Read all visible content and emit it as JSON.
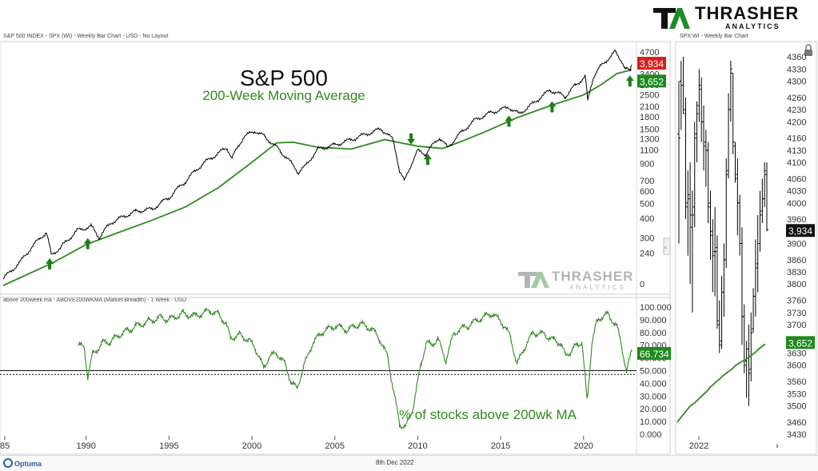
{
  "logo": {
    "main": "THRASHER",
    "sub": "ANALYTICS"
  },
  "watermark": {
    "main": "THRASHER",
    "sub": "ANALYTICS"
  },
  "left_panel": {
    "header": "S&P 500 INDEX - SPX (WI) - Weekly Bar Chart - USD - No Layout"
  },
  "breadth_panel": {
    "header": "above 200week ma - ABOVE200WKMA (Market Breadth) - 1 Week - USD"
  },
  "right_panel": {
    "header": "SPX:WI - Weekly Bar Chart"
  },
  "footer": {
    "date": "8th Dec 2022",
    "brand": "Optuma"
  },
  "colors": {
    "price": "#000000",
    "ma": "#2e8b1f",
    "breadth": "#2e8b1f",
    "arrow": "#1e7d14",
    "price_tag": "#d82020",
    "ma_tag": "#1e8a1e"
  },
  "chart_data": [
    {
      "type": "line",
      "title": "S&P 500",
      "subtitle": "200-Week Moving Average",
      "y_scale": "log",
      "ylim": [
        0,
        4700
      ],
      "y_ticks": [
        "4700",
        "3900",
        "3400",
        "2900",
        "2500",
        "2100",
        "1800",
        "1500",
        "1300",
        "1100",
        "900",
        "700",
        "600",
        "500",
        "400",
        "300",
        "240",
        "0"
      ],
      "x_ticks": [
        "85",
        "1990",
        "1995",
        "2000",
        "2005",
        "2010",
        "2015",
        "2020"
      ],
      "series": [
        {
          "x": [
            1985,
            1986,
            1987.6,
            1987.9,
            1988.5,
            1989.5,
            1990.3,
            1990.8,
            1991.5,
            1993,
            1994,
            1995,
            1996,
            1997,
            1998.5,
            1998.8,
            1999.5,
            2000.2,
            2000.8,
            2001.7,
            2002.8,
            2003.2,
            2004,
            2005,
            2006,
            2007.8,
            2008.5,
            2008.9,
            2009.2,
            2010,
            2010.5,
            2011.3,
            2011.8,
            2012.5,
            2013.5,
            2014.5,
            2015.5,
            2016.1,
            2016.8,
            2018,
            2018.9,
            2019.5,
            2020.1,
            2020.25,
            2020.6,
            2021,
            2021.9,
            2022.3,
            2022.5,
            2022.8,
            2022.9
          ],
          "values": [
            165,
            210,
            330,
            235,
            265,
            340,
            360,
            305,
            380,
            450,
            465,
            550,
            700,
            900,
            1150,
            980,
            1350,
            1480,
            1350,
            1100,
            800,
            870,
            1130,
            1200,
            1300,
            1520,
            1300,
            820,
            700,
            1100,
            1050,
            1340,
            1150,
            1400,
            1750,
            1950,
            2100,
            1900,
            2150,
            2700,
            2450,
            2900,
            3300,
            2300,
            3300,
            3800,
            4750,
            4200,
            3700,
            3600,
            3934
          ]
        },
        {
          "x": [
            1985,
            1988,
            1990,
            1992,
            1994,
            1996,
            1998,
            2000,
            2001.5,
            2002.5,
            2004,
            2006,
            2008,
            2010,
            2011.5,
            2012.5,
            2014,
            2016,
            2018,
            2020,
            2021,
            2022,
            2022.9
          ],
          "values": [
            150,
            210,
            275,
            330,
            395,
            480,
            640,
            930,
            1240,
            1250,
            1160,
            1130,
            1300,
            1180,
            1140,
            1250,
            1450,
            1800,
            2150,
            2520,
            2900,
            3450,
            3652
          ]
        }
      ],
      "labels": {
        "last_price": "3,934",
        "ma_value": "3,652"
      },
      "arrow_points": [
        {
          "x": 1987.8,
          "y": 230,
          "dir": "up"
        },
        {
          "x": 1990.1,
          "y": 310,
          "dir": "up"
        },
        {
          "x": 2009.6,
          "y": 1180,
          "dir": "down"
        },
        {
          "x": 2010.6,
          "y": 1080,
          "dir": "up"
        },
        {
          "x": 2015.5,
          "y": 1900,
          "dir": "up"
        },
        {
          "x": 2018.1,
          "y": 2350,
          "dir": "up"
        },
        {
          "x": 2022.8,
          "y": 3450,
          "dir": "up"
        }
      ]
    },
    {
      "type": "line",
      "title": "% of stocks above 200wk MA",
      "ylim": [
        0,
        100
      ],
      "y_ticks": [
        "100.000",
        "90.000",
        "80.000",
        "70.000",
        "60.000",
        "50.000",
        "40.000",
        "30.000",
        "20.000",
        "10.000",
        "0.000"
      ],
      "reference_lines": [
        50,
        47
      ],
      "x": [
        1989.5,
        1989.9,
        1990.1,
        1990.4,
        1991,
        1991.5,
        1992,
        1992.6,
        1993,
        1993.8,
        1994.5,
        1995,
        1995.8,
        1996.5,
        1997.5,
        1998,
        1998.4,
        1998.7,
        1999.3,
        1999.8,
        2000.2,
        2000.7,
        2001,
        2001.5,
        2002,
        2002.4,
        2002.7,
        2003.1,
        2003.6,
        2004.2,
        2005,
        2005.8,
        2006.5,
        2007.2,
        2007.7,
        2008.2,
        2008.6,
        2008.9,
        2009.3,
        2009.7,
        2010.2,
        2010.5,
        2010.8,
        2011.2,
        2011.7,
        2012.2,
        2013,
        2013.8,
        2014.5,
        2015.2,
        2015.6,
        2016,
        2016.5,
        2017,
        2017.7,
        2018.2,
        2018.6,
        2018.9,
        2019.3,
        2019.6,
        2019.9,
        2020.2,
        2020.25,
        2020.5,
        2020.8,
        2021,
        2021.5,
        2022,
        2022.3,
        2022.6,
        2022.9
      ],
      "values": [
        70,
        68,
        45,
        63,
        72,
        73,
        78,
        82,
        85,
        89,
        92,
        90,
        95,
        93,
        97,
        94,
        88,
        76,
        78,
        74,
        68,
        52,
        60,
        64,
        55,
        40,
        36,
        52,
        70,
        80,
        85,
        82,
        87,
        83,
        75,
        60,
        30,
        8,
        6,
        20,
        55,
        72,
        70,
        75,
        58,
        80,
        85,
        91,
        95,
        86,
        76,
        55,
        70,
        80,
        78,
        74,
        72,
        62,
        66,
        70,
        73,
        28,
        30,
        72,
        88,
        92,
        94,
        85,
        70,
        48,
        66.734
      ],
      "labels": {
        "last_value": "66.734"
      }
    },
    {
      "type": "bar",
      "title": "",
      "y_ticks": [
        "4360",
        "4330",
        "4300",
        "4260",
        "4230",
        "4200",
        "4160",
        "4130",
        "4100",
        "4060",
        "4030",
        "4000",
        "3960",
        "3930",
        "3900",
        "3860",
        "3830",
        "3800",
        "3760",
        "3730",
        "3700",
        "3660",
        "3630",
        "3600",
        "3560",
        "3530",
        "3500",
        "3460",
        "3430"
      ],
      "ylim": [
        3430,
        4370
      ],
      "x_ticks": [
        "2022"
      ],
      "ohlc": [
        [
          4170,
          4160,
          4300,
          3900
        ],
        [
          4300,
          4290,
          4350,
          4180
        ],
        [
          4290,
          4220,
          4360,
          4220
        ],
        [
          4230,
          3990,
          4260,
          3960
        ],
        [
          4000,
          4020,
          4080,
          3870
        ],
        [
          4010,
          3970,
          4100,
          3800
        ],
        [
          3940,
          3970,
          4030,
          3730
        ],
        [
          3990,
          4160,
          4200,
          3940
        ],
        [
          4170,
          4220,
          4250,
          4100
        ],
        [
          4240,
          4290,
          4330,
          4200
        ],
        [
          4280,
          4200,
          4310,
          4150
        ],
        [
          4200,
          4140,
          4240,
          4080
        ],
        [
          4150,
          4130,
          4180,
          4040
        ],
        [
          4130,
          3990,
          4150,
          3950
        ],
        [
          4000,
          3930,
          4030,
          3860
        ],
        [
          3920,
          3870,
          3960,
          3780
        ],
        [
          3880,
          3880,
          3990,
          3770
        ],
        [
          3890,
          3710,
          3920,
          3690
        ],
        [
          3700,
          3650,
          3760,
          3630
        ],
        [
          3660,
          3780,
          3820,
          3640
        ],
        [
          3780,
          3860,
          3900,
          3720
        ],
        [
          3860,
          4070,
          4110,
          3840
        ],
        [
          4080,
          4230,
          4270,
          4060
        ],
        [
          4230,
          4330,
          4350,
          4200
        ],
        [
          4320,
          4150,
          4320,
          4120
        ],
        [
          4140,
          4060,
          4150,
          4050
        ],
        [
          4070,
          4000,
          4110,
          3920
        ],
        [
          4000,
          3900,
          4020,
          3870
        ],
        [
          3900,
          3720,
          3940,
          3650
        ],
        [
          3720,
          3600,
          3750,
          3580
        ],
        [
          3610,
          3640,
          3660,
          3520
        ],
        [
          3640,
          3580,
          3700,
          3500
        ],
        [
          3590,
          3680,
          3730,
          3560
        ],
        [
          3690,
          3770,
          3790,
          3680
        ],
        [
          3770,
          3840,
          3910,
          3720
        ],
        [
          3850,
          3900,
          3970,
          3780
        ],
        [
          3900,
          3970,
          4030,
          3880
        ],
        [
          3980,
          4010,
          4060,
          3950
        ],
        [
          4010,
          4080,
          4100,
          3990
        ],
        [
          4070,
          3934,
          4100,
          3930
        ]
      ],
      "ma": [
        3460,
        3470,
        3480,
        3490,
        3500,
        3505,
        3512,
        3520,
        3528,
        3535,
        3545,
        3552,
        3560,
        3566,
        3574,
        3580,
        3586,
        3592,
        3600,
        3605,
        3610,
        3614,
        3620,
        3626,
        3632,
        3640,
        3646,
        3652
      ],
      "labels": {
        "last_price": "3,934",
        "ma_value": "3,652"
      }
    }
  ]
}
